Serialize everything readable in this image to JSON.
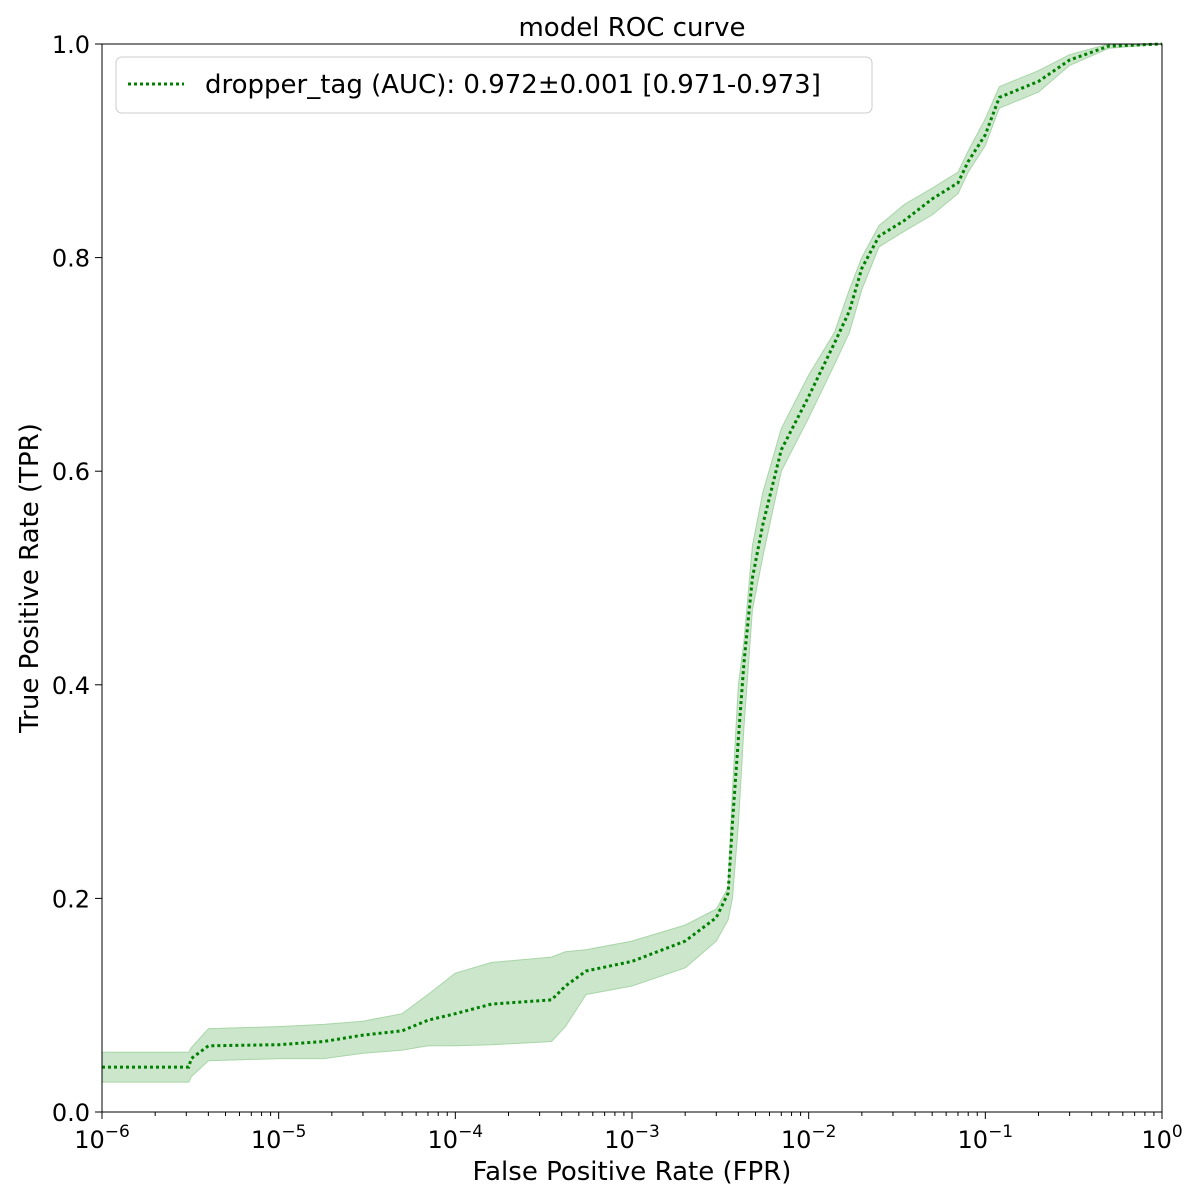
{
  "chart_data": {
    "type": "line",
    "title": "model ROC curve",
    "xlabel": "False Positive Rate (FPR)",
    "ylabel": "True Positive Rate (TPR)",
    "xscale": "log",
    "xlim": [
      1e-06,
      1
    ],
    "ylim": [
      0.0,
      1.0
    ],
    "grid": false,
    "legend_position": "top-left",
    "xticks": [
      {
        "value": 1e-06,
        "base": "10",
        "exp": "−6"
      },
      {
        "value": 1e-05,
        "base": "10",
        "exp": "−5"
      },
      {
        "value": 0.0001,
        "base": "10",
        "exp": "−4"
      },
      {
        "value": 0.001,
        "base": "10",
        "exp": "−3"
      },
      {
        "value": 0.01,
        "base": "10",
        "exp": "−2"
      },
      {
        "value": 0.1,
        "base": "10",
        "exp": "−1"
      },
      {
        "value": 1,
        "base": "10",
        "exp": "0"
      }
    ],
    "yticks": [
      {
        "value": 0.0,
        "label": "0.0"
      },
      {
        "value": 0.2,
        "label": "0.2"
      },
      {
        "value": 0.4,
        "label": "0.4"
      },
      {
        "value": 0.6,
        "label": "0.6"
      },
      {
        "value": 0.8,
        "label": "0.8"
      },
      {
        "value": 1.0,
        "label": "1.0"
      }
    ],
    "series": [
      {
        "name": "dropper_tag (AUC): 0.972±0.001 [0.971-0.973]",
        "color": "#008000",
        "band_color": "#a8d5a8",
        "line_style": "dotted",
        "points": [
          {
            "x": 1e-06,
            "y": 0.042,
            "lo": 0.028,
            "hi": 0.056
          },
          {
            "x": 3.1e-06,
            "y": 0.042,
            "lo": 0.028,
            "hi": 0.056
          },
          {
            "x": 3.2e-06,
            "y": 0.05,
            "lo": 0.033,
            "hi": 0.06
          },
          {
            "x": 4e-06,
            "y": 0.062,
            "lo": 0.048,
            "hi": 0.078
          },
          {
            "x": 1e-05,
            "y": 0.063,
            "lo": 0.05,
            "hi": 0.08
          },
          {
            "x": 1.8e-05,
            "y": 0.066,
            "lo": 0.05,
            "hi": 0.082
          },
          {
            "x": 3e-05,
            "y": 0.072,
            "lo": 0.055,
            "hi": 0.085
          },
          {
            "x": 5e-05,
            "y": 0.076,
            "lo": 0.058,
            "hi": 0.092
          },
          {
            "x": 7e-05,
            "y": 0.086,
            "lo": 0.062,
            "hi": 0.11
          },
          {
            "x": 0.0001,
            "y": 0.092,
            "lo": 0.062,
            "hi": 0.13
          },
          {
            "x": 0.00016,
            "y": 0.101,
            "lo": 0.063,
            "hi": 0.14
          },
          {
            "x": 0.00035,
            "y": 0.105,
            "lo": 0.066,
            "hi": 0.145
          },
          {
            "x": 0.00042,
            "y": 0.118,
            "lo": 0.08,
            "hi": 0.15
          },
          {
            "x": 0.00055,
            "y": 0.132,
            "lo": 0.11,
            "hi": 0.152
          },
          {
            "x": 0.001,
            "y": 0.141,
            "lo": 0.118,
            "hi": 0.16
          },
          {
            "x": 0.002,
            "y": 0.16,
            "lo": 0.135,
            "hi": 0.175
          },
          {
            "x": 0.003,
            "y": 0.182,
            "lo": 0.16,
            "hi": 0.19
          },
          {
            "x": 0.0035,
            "y": 0.205,
            "lo": 0.18,
            "hi": 0.21
          },
          {
            "x": 0.0037,
            "y": 0.27,
            "lo": 0.2,
            "hi": 0.3
          },
          {
            "x": 0.004,
            "y": 0.35,
            "lo": 0.27,
            "hi": 0.4
          },
          {
            "x": 0.0043,
            "y": 0.42,
            "lo": 0.36,
            "hi": 0.44
          },
          {
            "x": 0.0048,
            "y": 0.5,
            "lo": 0.47,
            "hi": 0.53
          },
          {
            "x": 0.0055,
            "y": 0.55,
            "lo": 0.52,
            "hi": 0.58
          },
          {
            "x": 0.007,
            "y": 0.62,
            "lo": 0.6,
            "hi": 0.64
          },
          {
            "x": 0.01,
            "y": 0.67,
            "lo": 0.65,
            "hi": 0.69
          },
          {
            "x": 0.014,
            "y": 0.72,
            "lo": 0.7,
            "hi": 0.73
          },
          {
            "x": 0.017,
            "y": 0.75,
            "lo": 0.73,
            "hi": 0.77
          },
          {
            "x": 0.02,
            "y": 0.79,
            "lo": 0.77,
            "hi": 0.8
          },
          {
            "x": 0.025,
            "y": 0.82,
            "lo": 0.81,
            "hi": 0.83
          },
          {
            "x": 0.035,
            "y": 0.835,
            "lo": 0.825,
            "hi": 0.85
          },
          {
            "x": 0.05,
            "y": 0.855,
            "lo": 0.84,
            "hi": 0.865
          },
          {
            "x": 0.07,
            "y": 0.87,
            "lo": 0.86,
            "hi": 0.88
          },
          {
            "x": 0.08,
            "y": 0.89,
            "lo": 0.88,
            "hi": 0.9
          },
          {
            "x": 0.1,
            "y": 0.915,
            "lo": 0.905,
            "hi": 0.93
          },
          {
            "x": 0.12,
            "y": 0.95,
            "lo": 0.94,
            "hi": 0.96
          },
          {
            "x": 0.2,
            "y": 0.965,
            "lo": 0.955,
            "hi": 0.975
          },
          {
            "x": 0.3,
            "y": 0.985,
            "lo": 0.98,
            "hi": 0.99
          },
          {
            "x": 0.5,
            "y": 0.998,
            "lo": 0.996,
            "hi": 1.0
          },
          {
            "x": 1,
            "y": 1.0,
            "lo": 1.0,
            "hi": 1.0
          }
        ]
      }
    ]
  }
}
